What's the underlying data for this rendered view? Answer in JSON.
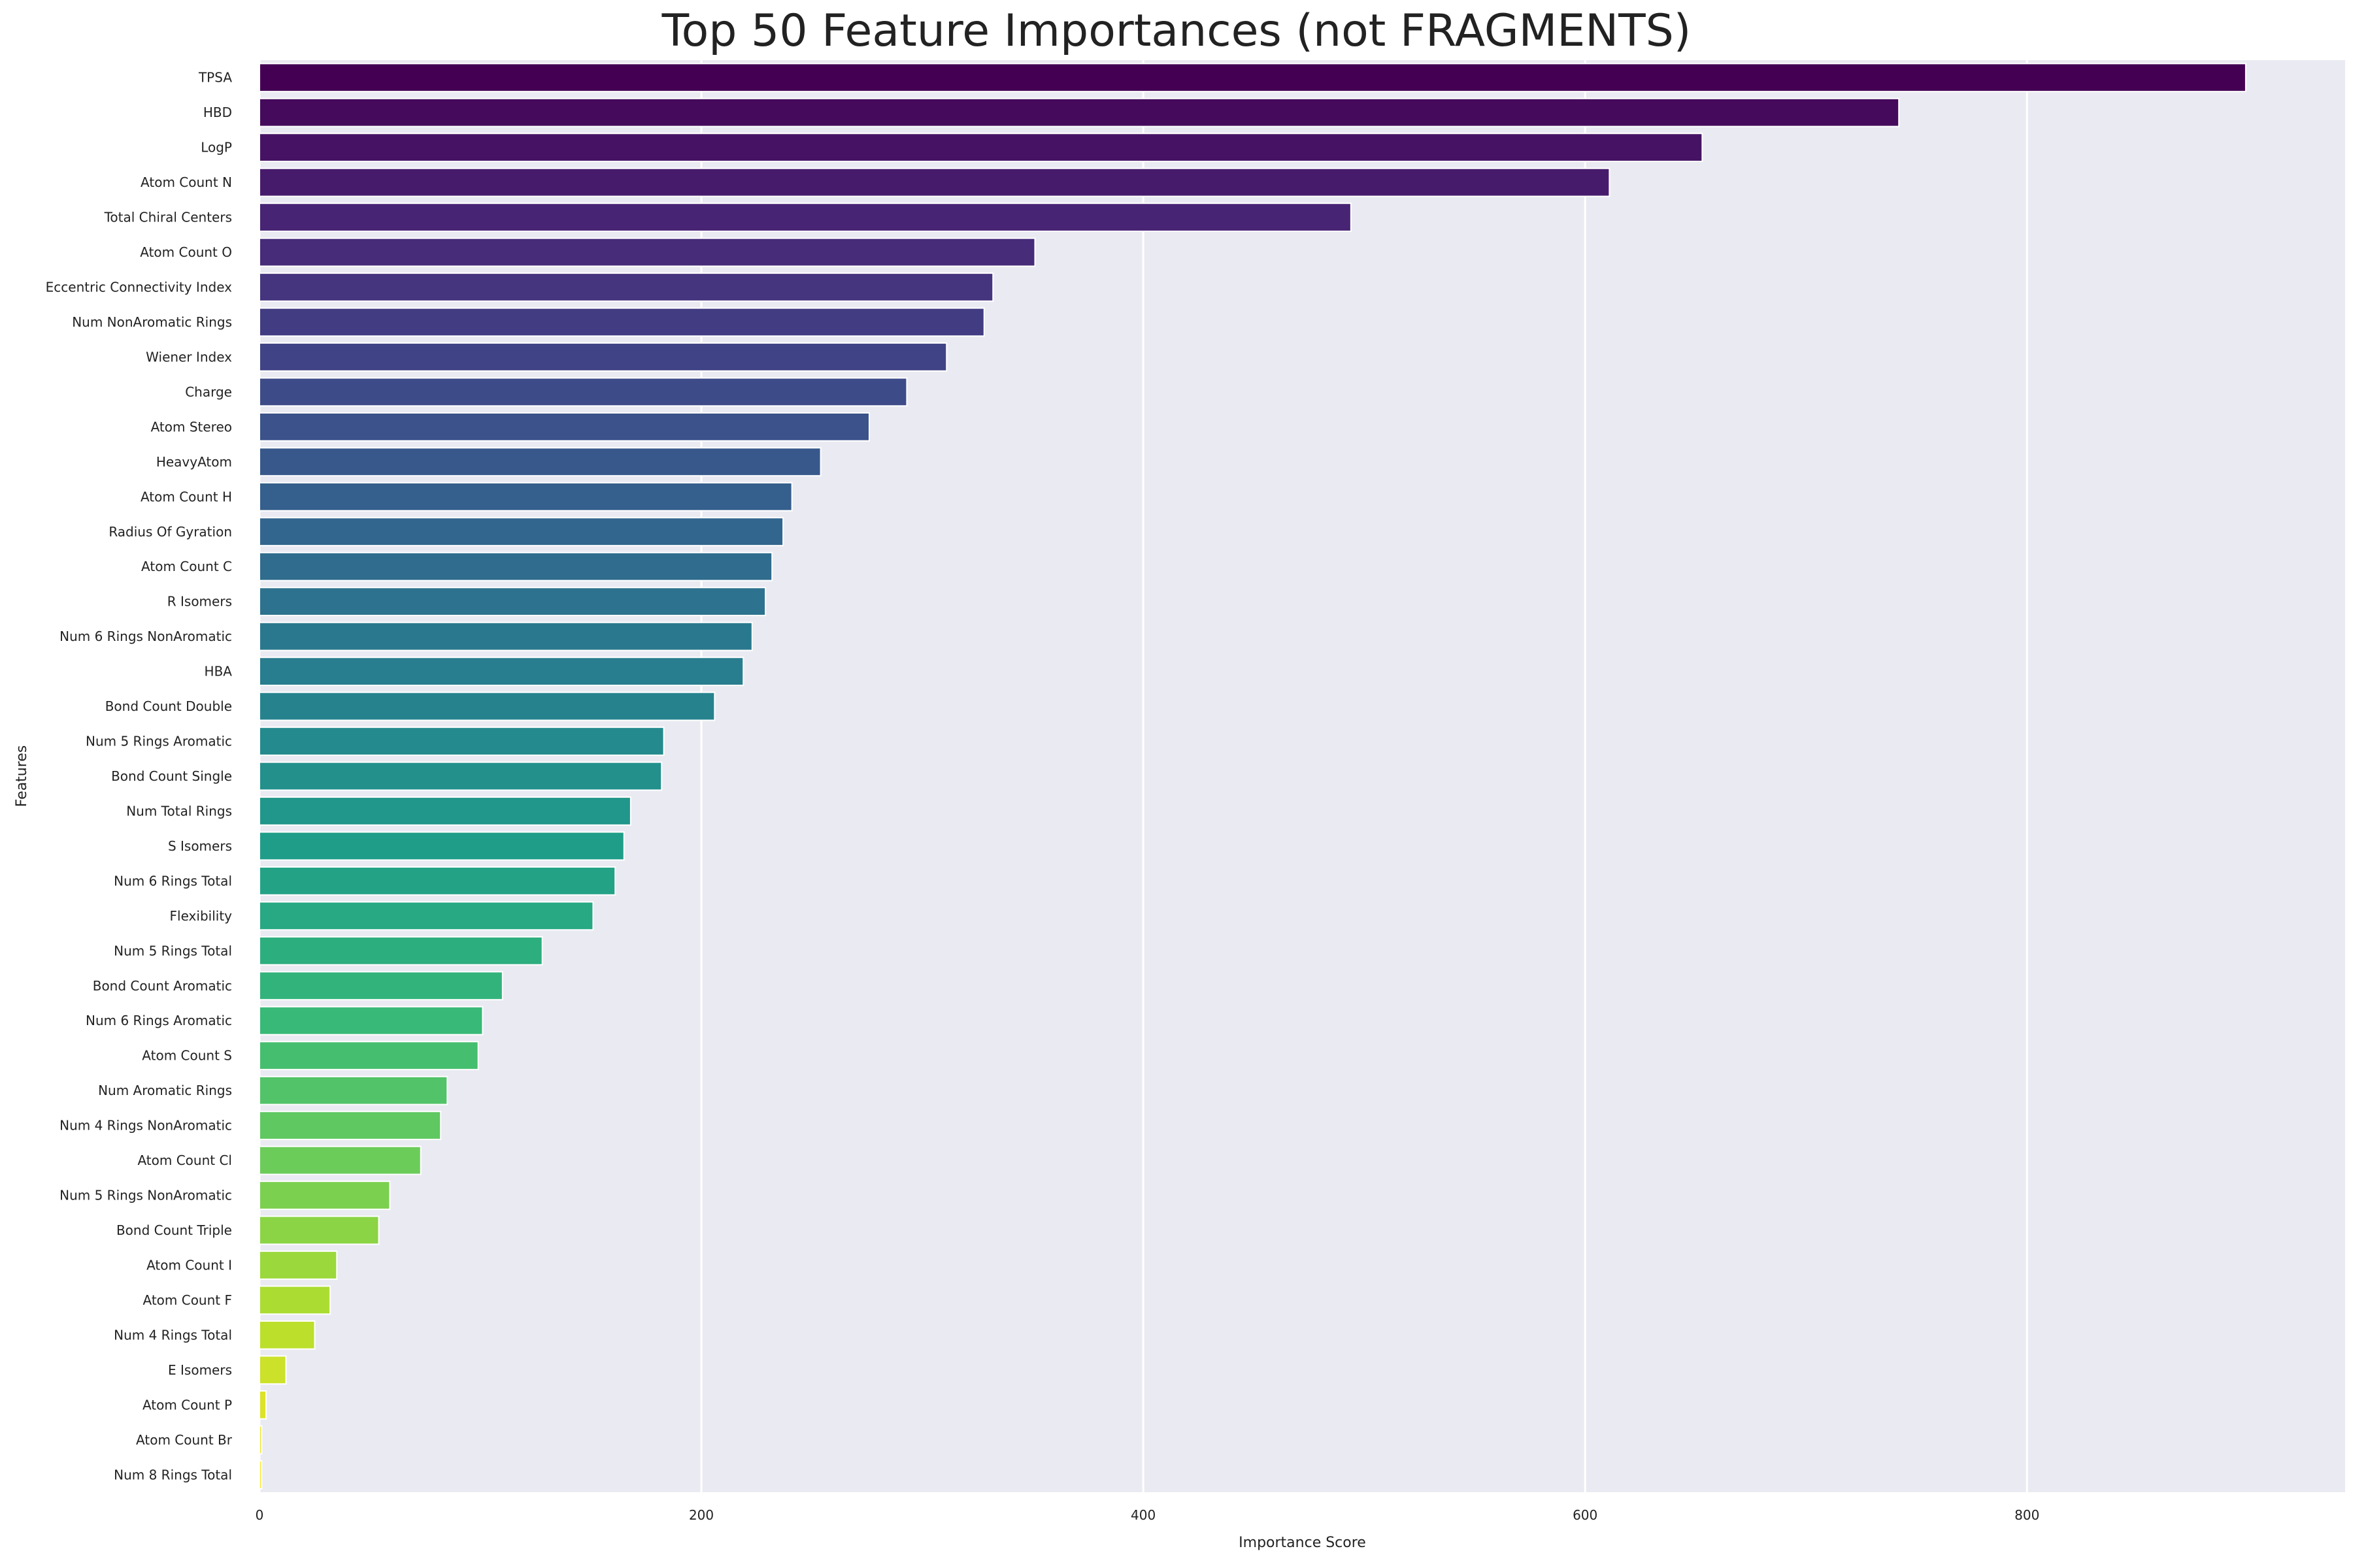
{
  "chart_data": {
    "type": "bar",
    "orientation": "horizontal",
    "title": "Top 50 Feature Importances (not FRAGMENTS)",
    "xlabel": "Importance Score",
    "ylabel": "Features",
    "xlim": [
      0,
      944
    ],
    "xticks": [
      0,
      200,
      400,
      600,
      800
    ],
    "grid": true,
    "palette": "viridis",
    "background": "#eaeaf2",
    "categories": [
      "TPSA",
      "HBD",
      "LogP",
      "Atom Count N",
      "Total Chiral Centers",
      "Atom Count O",
      "Eccentric Connectivity Index",
      "Num NonAromatic Rings",
      "Wiener Index",
      "Charge",
      "Atom Stereo",
      "HeavyAtom",
      "Atom Count H",
      "Radius Of Gyration",
      "Atom Count C",
      "R Isomers",
      "Num 6 Rings NonAromatic",
      "HBA",
      "Bond Count Double",
      "Num 5 Rings Aromatic",
      "Bond Count Single",
      "Num Total Rings",
      "S Isomers",
      "Num 6 Rings Total",
      "Flexibility",
      "Num 5 Rings Total",
      "Bond Count Aromatic",
      "Num 6 Rings Aromatic",
      "Atom Count S",
      "Num Aromatic Rings",
      "Num 4 Rings NonAromatic",
      "Atom Count Cl",
      "Num 5 Rings NonAromatic",
      "Bond Count Triple",
      "Atom Count I",
      "Atom Count F",
      "Num 4 Rings Total",
      "E Isomers",
      "Atom Count P",
      "Atom Count Br",
      "Num 8 Rings Total"
    ],
    "values": [
      899,
      742,
      653,
      611,
      494,
      351,
      332,
      328,
      311,
      293,
      276,
      254,
      241,
      237,
      232,
      229,
      223,
      219,
      206,
      183,
      182,
      168,
      165,
      161,
      151,
      128,
      110,
      101,
      99,
      85,
      82,
      73,
      59,
      54,
      35,
      32,
      25,
      12,
      3,
      1,
      1
    ]
  }
}
